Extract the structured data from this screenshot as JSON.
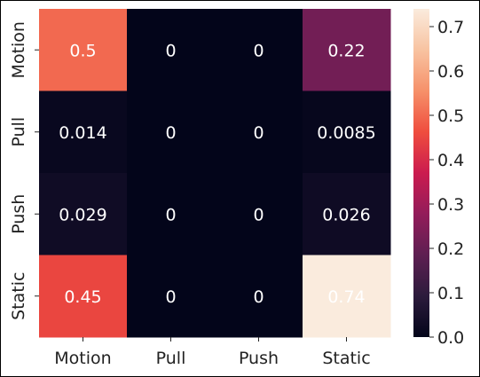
{
  "chart_data": {
    "type": "heatmap",
    "title": "",
    "xlabel": "",
    "ylabel": "",
    "x_categories": [
      "Motion",
      "Pull",
      "Push",
      "Static"
    ],
    "y_categories": [
      "Motion",
      "Pull",
      "Push",
      "Static"
    ],
    "values": [
      [
        0.5,
        0,
        0,
        0.22
      ],
      [
        0.014,
        0,
        0,
        0.0085
      ],
      [
        0.029,
        0,
        0,
        0.026
      ],
      [
        0.45,
        0,
        0,
        0.74
      ]
    ],
    "cell_labels": [
      [
        "0.5",
        "0",
        "0",
        "0.22"
      ],
      [
        "0.014",
        "0",
        "0",
        "0.0085"
      ],
      [
        "0.029",
        "0",
        "0",
        "0.026"
      ],
      [
        "0.45",
        "0",
        "0",
        "0.74"
      ]
    ],
    "colorbar": {
      "range": [
        0,
        0.74
      ],
      "ticks": [
        0.0,
        0.1,
        0.2,
        0.3,
        0.4,
        0.5,
        0.6,
        0.7
      ],
      "tick_labels": [
        "0.0",
        "0.1",
        "0.2",
        "0.3",
        "0.4",
        "0.5",
        "0.6",
        "0.7"
      ]
    },
    "colormap": "rocket",
    "colormap_stops": [
      "#03051a",
      "#2c1b3c",
      "#5e1f52",
      "#931c5a",
      "#cb1b4f",
      "#ef4d3e",
      "#f6916a",
      "#f8c3a1",
      "#faebdd"
    ],
    "cell_text_color": "#ffffff",
    "grid": false
  }
}
